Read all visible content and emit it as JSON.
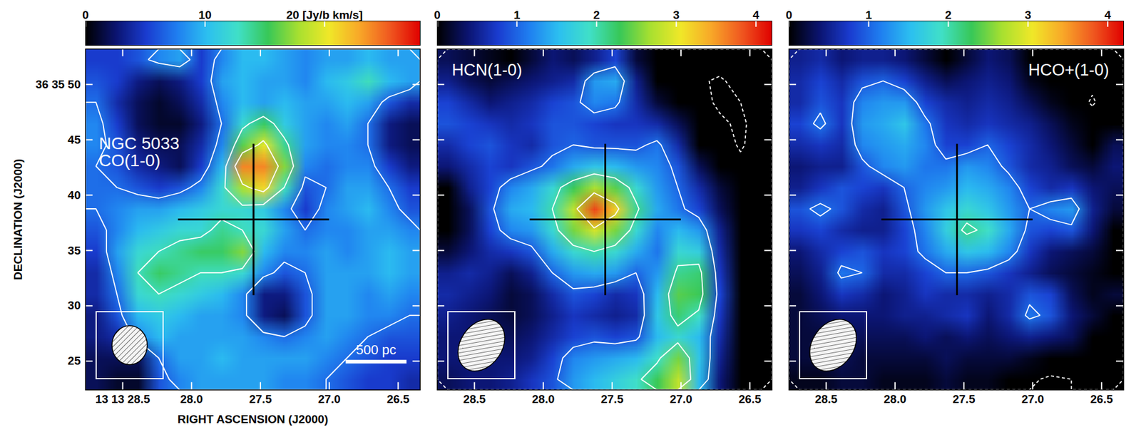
{
  "chart_data": [
    {
      "type": "heatmap",
      "title": [
        "NGC 5033",
        "CO(1-0)"
      ],
      "xlabel": "RIGHT ASCENSION (J2000)",
      "ylabel": "DECLINATION (J2000)",
      "xlim": [
        28.77,
        26.34
      ],
      "ylim": [
        22.4,
        53.2
      ],
      "xticks": [
        {
          "value": 28.5,
          "label": "13 13 28.5"
        },
        {
          "value": 28,
          "label": "28.0"
        },
        27.5,
        {
          "value": 27,
          "label": "27.0"
        },
        26.5
      ],
      "yticks": [
        {
          "value": 50,
          "label": "36 35 50"
        },
        45,
        40,
        35,
        30,
        25
      ],
      "colorbar": {
        "range": [
          0,
          28
        ],
        "ticks": [
          0,
          10,
          {
            "value": 20,
            "label": "20 [Jy/b km/s]"
          }
        ]
      },
      "contours": [
        7,
        13,
        19
      ],
      "cross": {
        "ra": 27.55,
        "dec": 37.8,
        "marker": "plus"
      },
      "scale_bar": "500 pc",
      "cells": [
        [
          5,
          5,
          6,
          8,
          9,
          5,
          8,
          10,
          10,
          9,
          8,
          9,
          9,
          10,
          9,
          9
        ],
        [
          6,
          5,
          3,
          2,
          3,
          5,
          9,
          10,
          9,
          9,
          8,
          10,
          11,
          13,
          10,
          9
        ],
        [
          7,
          4,
          2,
          1,
          2,
          4,
          8,
          10,
          9,
          10,
          9,
          9,
          10,
          9,
          6,
          4
        ],
        [
          8,
          5,
          2,
          1,
          1,
          3,
          7,
          12,
          15,
          11,
          9,
          8,
          9,
          7,
          3,
          2
        ],
        [
          8,
          6,
          3,
          2,
          2,
          4,
          8,
          16,
          20,
          14,
          9,
          8,
          8,
          7,
          3,
          2
        ],
        [
          7,
          6,
          4,
          3,
          2,
          5,
          10,
          24,
          24,
          17,
          8,
          7,
          8,
          8,
          5,
          3
        ],
        [
          7,
          7,
          6,
          5,
          6,
          8,
          12,
          18,
          21,
          13,
          6,
          7,
          9,
          9,
          7,
          5
        ],
        [
          7,
          8,
          9,
          9,
          10,
          11,
          12,
          12,
          11,
          8,
          5,
          8,
          9,
          10,
          8,
          6
        ],
        [
          6,
          8,
          10,
          11,
          12,
          12,
          14,
          13,
          12,
          9,
          7,
          8,
          8,
          9,
          9,
          8
        ],
        [
          5,
          9,
          12,
          13,
          14,
          15,
          15,
          17,
          10,
          8,
          8,
          9,
          8,
          9,
          10,
          9
        ],
        [
          4,
          8,
          13,
          15,
          14,
          13,
          13,
          12,
          8,
          6,
          7,
          9,
          9,
          9,
          10,
          9
        ],
        [
          4,
          7,
          12,
          13,
          12,
          11,
          10,
          8,
          3,
          3,
          6,
          9,
          9,
          8,
          9,
          8
        ],
        [
          3,
          6,
          10,
          11,
          10,
          9,
          9,
          8,
          3,
          2,
          6,
          9,
          9,
          8,
          8,
          7
        ],
        [
          3,
          4,
          8,
          10,
          9,
          9,
          9,
          9,
          8,
          7,
          8,
          9,
          8,
          7,
          6,
          6
        ],
        [
          2,
          2,
          2,
          7,
          9,
          9,
          10,
          9,
          9,
          9,
          9,
          8,
          7,
          6,
          5,
          5
        ],
        [
          2,
          1,
          1,
          6,
          8,
          9,
          9,
          9,
          9,
          8,
          8,
          7,
          6,
          5,
          5,
          4
        ]
      ]
    },
    {
      "type": "heatmap",
      "title": [
        "HCN(1-0)"
      ],
      "xlim": [
        28.77,
        26.34
      ],
      "ylim": [
        22.4,
        53.2
      ],
      "xticks": [
        28.5,
        {
          "value": 28,
          "label": "28.0"
        },
        27.5,
        {
          "value": 27,
          "label": "27.0"
        },
        26.5
      ],
      "yticks": [
        50,
        45,
        40,
        35,
        30,
        25
      ],
      "tick_labels": "x",
      "colorbar": {
        "range": [
          0,
          4.2
        ],
        "ticks": [
          0,
          1,
          2,
          3,
          4
        ]
      },
      "contours": [
        -1,
        1,
        2,
        3
      ],
      "cross": {
        "ra": 27.55,
        "dec": 37.8,
        "marker": "plus"
      },
      "cells": [
        [
          0.3,
          0.2,
          0.1,
          0,
          0.2,
          0.4,
          0.3,
          0.5,
          0.8,
          0.2,
          0,
          0,
          0,
          -0.3,
          -0.4,
          0
        ],
        [
          0.5,
          0.3,
          0.2,
          0.3,
          0.4,
          0.5,
          0.6,
          1.3,
          1.4,
          0.5,
          0,
          0,
          -0.8,
          -1.2,
          -0.5,
          0
        ],
        [
          0.8,
          0.6,
          0.4,
          0.5,
          0.6,
          0.8,
          0.9,
          1.2,
          1.1,
          0.6,
          0.2,
          0,
          -0.6,
          -1.2,
          -1.0,
          -0.3
        ],
        [
          0.9,
          0.8,
          0.7,
          0.6,
          0.7,
          0.9,
          0.9,
          0.8,
          0.7,
          0.7,
          0.6,
          0.3,
          -0.2,
          -0.8,
          -1.2,
          -0.5
        ],
        [
          0.6,
          0.8,
          0.9,
          0.7,
          0.6,
          0.9,
          1.0,
          0.9,
          0.9,
          0.9,
          1.1,
          0.6,
          0,
          -0.6,
          -1.1,
          -0.6
        ],
        [
          0.4,
          0.6,
          0.8,
          0.7,
          0.9,
          1.1,
          1.4,
          1.6,
          1.5,
          1.3,
          1.2,
          0.9,
          0.3,
          -0.3,
          -0.8,
          -0.2
        ],
        [
          -0.2,
          0.5,
          0.8,
          1.2,
          1.4,
          1.8,
          2.3,
          2.7,
          2.4,
          1.8,
          1.3,
          1.0,
          0.6,
          0.2,
          0,
          0
        ],
        [
          -0.8,
          0.3,
          0.9,
          1.4,
          1.5,
          2.0,
          2.8,
          3.9,
          3.2,
          2.1,
          1.4,
          1.1,
          0.8,
          0.3,
          0,
          0
        ],
        [
          -0.3,
          0.3,
          0.8,
          1.2,
          1.3,
          1.8,
          2.5,
          2.9,
          2.5,
          1.8,
          1.2,
          1.5,
          1.3,
          0.5,
          0,
          -0.3
        ],
        [
          0.2,
          0.4,
          0.6,
          0.7,
          0.9,
          1.4,
          1.8,
          2.0,
          1.8,
          1.4,
          1.1,
          1.8,
          1.7,
          0.6,
          0,
          -0.6
        ],
        [
          0.5,
          0.6,
          0.5,
          0.3,
          0.5,
          1.0,
          1.3,
          1.4,
          1.3,
          1.0,
          1.3,
          2.1,
          2.2,
          0.7,
          0,
          -0.5
        ],
        [
          0.6,
          0.5,
          0.4,
          0.2,
          0.3,
          0.6,
          0.9,
          0.8,
          0.6,
          0.7,
          1.5,
          2.4,
          2.3,
          0.8,
          0,
          0
        ],
        [
          0.5,
          0.4,
          0.3,
          0.2,
          0.3,
          0.5,
          0.7,
          0.6,
          0.5,
          0.6,
          1.6,
          2.2,
          1.9,
          0.7,
          0,
          0
        ],
        [
          0.4,
          0.4,
          0.3,
          0.3,
          0.4,
          0.6,
          0.8,
          0.9,
          0.8,
          0.9,
          1.5,
          1.8,
          1.5,
          0.6,
          0,
          -0.4
        ],
        [
          0.4,
          0.4,
          0.4,
          0.4,
          0.5,
          0.8,
          1.2,
          1.3,
          1.4,
          1.5,
          1.9,
          2.5,
          1.6,
          0.5,
          -0.3,
          -0.8
        ],
        [
          0.3,
          0.4,
          0.4,
          0.5,
          0.7,
          0.9,
          1.3,
          1.5,
          1.7,
          1.9,
          2.3,
          2.8,
          1.5,
          0.4,
          -0.3,
          -0.7
        ]
      ]
    },
    {
      "type": "heatmap",
      "title": [
        "HCO+(1-0)"
      ],
      "xlim": [
        28.77,
        26.34
      ],
      "ylim": [
        22.4,
        53.2
      ],
      "xticks": [
        28.5,
        {
          "value": 28,
          "label": "28.0"
        },
        27.5,
        {
          "value": 27,
          "label": "27.0"
        },
        26.5
      ],
      "yticks": [
        50,
        45,
        40,
        35,
        30,
        25
      ],
      "tick_labels": "x",
      "colorbar": {
        "range": [
          0,
          4.2
        ],
        "ticks": [
          0,
          1,
          2,
          3,
          4
        ]
      },
      "contours": [
        -0.5,
        1,
        2
      ],
      "cross": {
        "ra": 27.55,
        "dec": 37.8,
        "marker": "plus"
      },
      "cells": [
        [
          0.5,
          0.6,
          0.4,
          0.5,
          0.5,
          0.4,
          0.2,
          0,
          0.2,
          0.4,
          0.3,
          0,
          0,
          0,
          0,
          0
        ],
        [
          0.6,
          0.8,
          0.6,
          0.9,
          1.0,
          0.8,
          0.5,
          0.3,
          0.4,
          0.5,
          0.4,
          0.1,
          0,
          -0.5,
          -0.3,
          0
        ],
        [
          0.6,
          0.9,
          0.7,
          1.2,
          1.3,
          1.3,
          0.8,
          0.6,
          0.5,
          0.6,
          0.5,
          0.3,
          0.1,
          0,
          -0.6,
          0
        ],
        [
          0.8,
          1.1,
          0.7,
          1.3,
          1.4,
          1.6,
          1.1,
          0.7,
          0.6,
          0.7,
          0.6,
          0.5,
          0.3,
          0.1,
          0,
          0
        ],
        [
          0.6,
          0.7,
          0.6,
          1.2,
          1.3,
          1.4,
          1.2,
          0.8,
          0.8,
          1.0,
          0.8,
          0.6,
          0.4,
          0.2,
          0,
          0.3
        ],
        [
          0.4,
          0.5,
          0.5,
          0.9,
          1.2,
          1.3,
          1.1,
          1.1,
          1.3,
          1.2,
          0.9,
          0.6,
          0.5,
          0.3,
          0.2,
          0.4
        ],
        [
          0.5,
          0.7,
          0.9,
          0.8,
          0.7,
          1.0,
          1.2,
          1.3,
          1.5,
          1.4,
          1.2,
          0.8,
          0.6,
          0.7,
          0.4,
          0.3
        ],
        [
          0.9,
          1.1,
          0.9,
          0.6,
          0.5,
          0.9,
          1.3,
          1.6,
          1.8,
          1.6,
          1.3,
          1.0,
          1.2,
          1.3,
          0.5,
          0.2
        ],
        [
          0.7,
          0.8,
          0.6,
          0.5,
          0.5,
          0.8,
          1.2,
          1.7,
          2.1,
          1.9,
          1.4,
          0.9,
          0.8,
          0.9,
          0.4,
          0
        ],
        [
          0.4,
          0.6,
          0.8,
          0.9,
          0.7,
          0.8,
          1.1,
          1.4,
          1.6,
          1.5,
          1.2,
          0.7,
          0.4,
          0.3,
          0.2,
          0
        ],
        [
          0.3,
          0.5,
          1.1,
          1.0,
          0.6,
          0.6,
          0.8,
          1.0,
          1.0,
          0.9,
          0.7,
          0.5,
          0.3,
          0.2,
          0.1,
          0
        ],
        [
          0.2,
          0.4,
          0.7,
          0.6,
          0.4,
          0.5,
          0.7,
          0.6,
          0.6,
          0.5,
          0.6,
          0.9,
          0.8,
          0.3,
          0.1,
          0.2
        ],
        [
          0.2,
          0.3,
          0.4,
          0.4,
          0.4,
          0.5,
          0.5,
          0.6,
          0.7,
          0.4,
          0.6,
          1.1,
          0.9,
          0.4,
          0.2,
          -0.2
        ],
        [
          0.2,
          0.2,
          0.3,
          0.3,
          0.3,
          0.3,
          0.4,
          0.3,
          0.4,
          0.3,
          0.4,
          0.5,
          0.4,
          0.3,
          0,
          -0.5
        ],
        [
          0.2,
          0.2,
          0.3,
          0.2,
          0.2,
          0.2,
          0.2,
          0.3,
          0.2,
          0.2,
          0.2,
          0.1,
          0,
          -0.3,
          -0.5,
          -0.3
        ],
        [
          0.1,
          0.1,
          0.2,
          0.2,
          0.1,
          0.1,
          0.1,
          0.2,
          0.1,
          0.1,
          0,
          -0.4,
          -0.6,
          -0.5,
          -0.2,
          0
        ]
      ]
    }
  ]
}
